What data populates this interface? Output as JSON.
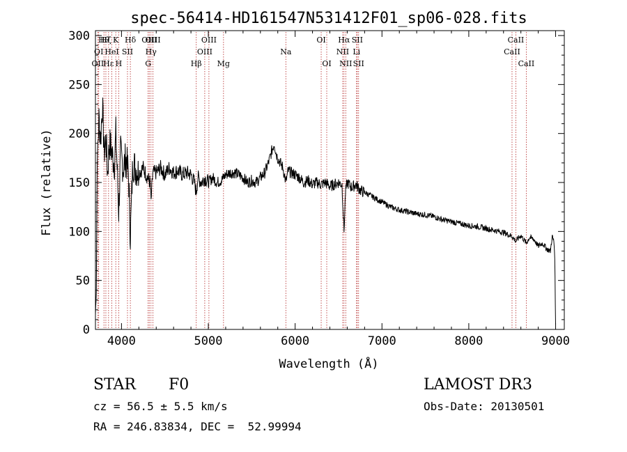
{
  "chart_data": {
    "type": "line",
    "title": "spec-56414-HD161547N531412F01_sp06-028.fits",
    "xlabel": "Wavelength (Å)",
    "ylabel": "Flux (relative)",
    "xlim": [
      3700,
      9100
    ],
    "ylim": [
      0,
      305
    ],
    "xticks": [
      4000,
      5000,
      6000,
      7000,
      8000,
      9000
    ],
    "xtick_labels": [
      "4000",
      "5000",
      "6000",
      "7000",
      "8000",
      "9000"
    ],
    "yticks": [
      0,
      50,
      100,
      150,
      200,
      250,
      300
    ],
    "ytick_labels": [
      "0",
      "50",
      "100",
      "150",
      "200",
      "250",
      "300"
    ],
    "grid": false,
    "line_color": "#000000",
    "marker_color": "#b22222",
    "series": [
      {
        "name": "flux",
        "x": [
          3700,
          3710,
          3720,
          3740,
          3760,
          3780,
          3800,
          3820,
          3840,
          3860,
          3880,
          3900,
          3920,
          3935,
          3950,
          3968,
          3990,
          4020,
          4050,
          4080,
          4102,
          4130,
          4160,
          4200,
          4250,
          4300,
          4330,
          4340,
          4360,
          4400,
          4450,
          4500,
          4550,
          4600,
          4650,
          4700,
          4750,
          4800,
          4840,
          4861,
          4880,
          4920,
          4960,
          5000,
          5050,
          5100,
          5150,
          5200,
          5250,
          5300,
          5350,
          5400,
          5450,
          5500,
          5550,
          5600,
          5650,
          5700,
          5730,
          5760,
          5780,
          5800,
          5830,
          5860,
          5893,
          5920,
          5950,
          6000,
          6050,
          6100,
          6150,
          6200,
          6250,
          6300,
          6350,
          6400,
          6450,
          6500,
          6540,
          6563,
          6580,
          6600,
          6650,
          6700,
          6750,
          6800,
          6900,
          7000,
          7100,
          7200,
          7300,
          7400,
          7500,
          7600,
          7700,
          7800,
          7900,
          8000,
          8100,
          8200,
          8300,
          8400,
          8500,
          8542,
          8600,
          8662,
          8700,
          8750,
          8800,
          8850,
          8900,
          8940,
          8960,
          8980,
          8990,
          9000
        ],
        "y": [
          15,
          40,
          170,
          215,
          195,
          230,
          180,
          195,
          160,
          190,
          185,
          175,
          170,
          200,
          165,
          120,
          180,
          165,
          175,
          160,
          95,
          170,
          165,
          160,
          165,
          155,
          150,
          130,
          160,
          160,
          165,
          158,
          165,
          160,
          162,
          158,
          160,
          158,
          150,
          140,
          155,
          150,
          155,
          150,
          155,
          150,
          152,
          158,
          160,
          160,
          158,
          155,
          150,
          152,
          150,
          155,
          160,
          172,
          182,
          190,
          180,
          175,
          170,
          165,
          150,
          162,
          160,
          158,
          155,
          150,
          152,
          148,
          150,
          148,
          150,
          146,
          148,
          150,
          148,
          100,
          140,
          150,
          145,
          148,
          142,
          140,
          135,
          130,
          125,
          122,
          120,
          118,
          117,
          115,
          112,
          110,
          108,
          106,
          105,
          103,
          101,
          99,
          95,
          90,
          96,
          88,
          94,
          92,
          85,
          88,
          82,
          80,
          95,
          90,
          75,
          5
        ]
      }
    ],
    "line_markers": [
      {
        "label": "OII",
        "x": 3727,
        "row": 3
      },
      {
        "label": "OI",
        "x": 3738,
        "row": 2
      },
      {
        "label": "Hθ",
        "x": 3798,
        "row": 1
      },
      {
        "label": "Hζ",
        "x": 3820,
        "row": 1
      },
      {
        "label": "Hε",
        "x": 3851,
        "row": 3
      },
      {
        "label": "HeI",
        "x": 3889,
        "row": 2
      },
      {
        "label": "K",
        "x": 3934,
        "row": 1
      },
      {
        "label": "H",
        "x": 3968,
        "row": 3
      },
      {
        "label": "SII",
        "x": 4069,
        "row": 2
      },
      {
        "label": "Hδ",
        "x": 4102,
        "row": 1
      },
      {
        "label": "OIII",
        "x": 4320,
        "row": 1
      },
      {
        "label": "G",
        "x": 4307,
        "row": 3
      },
      {
        "label": "Hγ",
        "x": 4340,
        "row": 2
      },
      {
        "label": "OIII",
        "x": 4363,
        "row": 1
      },
      {
        "label": "Hβ",
        "x": 4861,
        "row": 3
      },
      {
        "label": "OIII",
        "x": 4959,
        "row": 2
      },
      {
        "label": "OIII",
        "x": 5007,
        "row": 1
      },
      {
        "label": "Mg",
        "x": 5175,
        "row": 3
      },
      {
        "label": "Na",
        "x": 5893,
        "row": 2
      },
      {
        "label": "OI",
        "x": 6300,
        "row": 1
      },
      {
        "label": "OI",
        "x": 6364,
        "row": 3
      },
      {
        "label": "NII",
        "x": 6548,
        "row": 2
      },
      {
        "label": "Hα",
        "x": 6563,
        "row": 1
      },
      {
        "label": "NII",
        "x": 6583,
        "row": 3
      },
      {
        "label": "Li",
        "x": 6707,
        "row": 2
      },
      {
        "label": "SII",
        "x": 6716,
        "row": 1
      },
      {
        "label": "SII",
        "x": 6731,
        "row": 3
      },
      {
        "label": "CaII",
        "x": 8498,
        "row": 2
      },
      {
        "label": "CaII",
        "x": 8542,
        "row": 1
      },
      {
        "label": "CaII",
        "x": 8662,
        "row": 3
      }
    ]
  },
  "info": {
    "object_type": "STAR",
    "subclass": "F0",
    "survey": "LAMOST DR3",
    "cz": "cz = 56.5 ± 5.5 km/s",
    "obs_date": "Obs-Date: 20130501",
    "radec": "RA = 246.83834, DEC =  52.99994"
  }
}
